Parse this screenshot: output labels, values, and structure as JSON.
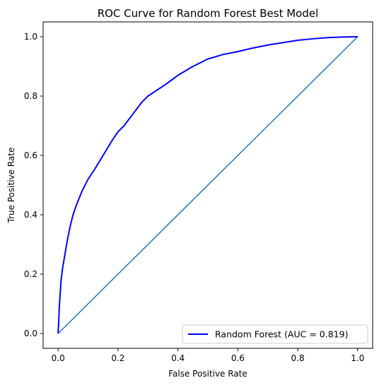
{
  "chart_data": {
    "type": "line",
    "title": "ROC Curve for Random Forest Best Model",
    "xlabel": "False Positive Rate",
    "ylabel": "True Positive Rate",
    "xlim": [
      -0.05,
      1.05
    ],
    "ylim": [
      -0.05,
      1.05
    ],
    "xticks": [
      "0.0",
      "0.2",
      "0.4",
      "0.6",
      "0.8",
      "1.0"
    ],
    "yticks": [
      "0.0",
      "0.2",
      "0.4",
      "0.6",
      "0.8",
      "1.0"
    ],
    "grid": false,
    "legend_position": "lower-right",
    "series": [
      {
        "name": "Random Forest (AUC = 0.819)",
        "color": "#0000ff",
        "x": [
          0,
          0.002,
          0.004,
          0.006,
          0.008,
          0.01,
          0.015,
          0.02,
          0.03,
          0.04,
          0.05,
          0.06,
          0.08,
          0.1,
          0.12,
          0.15,
          0.18,
          0.2,
          0.22,
          0.25,
          0.28,
          0.3,
          0.33,
          0.36,
          0.4,
          0.45,
          0.5,
          0.55,
          0.6,
          0.65,
          0.7,
          0.75,
          0.8,
          0.85,
          0.9,
          0.95,
          1.0
        ],
        "y": [
          0,
          0.04,
          0.09,
          0.12,
          0.15,
          0.18,
          0.22,
          0.25,
          0.31,
          0.36,
          0.4,
          0.43,
          0.48,
          0.52,
          0.55,
          0.6,
          0.65,
          0.68,
          0.7,
          0.74,
          0.78,
          0.8,
          0.82,
          0.84,
          0.87,
          0.9,
          0.925,
          0.94,
          0.95,
          0.962,
          0.972,
          0.98,
          0.988,
          0.993,
          0.997,
          0.999,
          1.0
        ]
      },
      {
        "name": "",
        "color": "#1f77b4",
        "x": [
          0,
          1
        ],
        "y": [
          0,
          1
        ]
      }
    ]
  }
}
